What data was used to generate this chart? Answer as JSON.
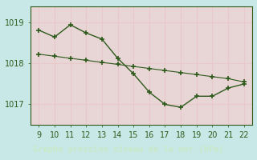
{
  "line1_x": [
    9,
    10,
    11,
    12,
    13,
    14,
    15,
    16,
    17,
    18,
    19,
    20,
    21,
    22
  ],
  "line1_y": [
    1018.82,
    1018.65,
    1018.95,
    1018.75,
    1018.6,
    1018.13,
    1017.75,
    1017.3,
    1017.0,
    1016.93,
    1017.2,
    1017.2,
    1017.4,
    1017.5
  ],
  "line2_x": [
    9,
    10,
    11,
    12,
    13,
    14,
    15,
    16,
    17,
    18,
    19,
    20,
    21,
    22
  ],
  "line2_y": [
    1018.23,
    1018.18,
    1018.13,
    1018.08,
    1018.03,
    1017.98,
    1017.93,
    1017.88,
    1017.83,
    1017.78,
    1017.73,
    1017.68,
    1017.63,
    1017.55
  ],
  "line_color": "#2d5a1b",
  "plot_bg_color": "#e8d5d5",
  "outer_bg_color": "#c8e8e8",
  "grid_color": "#e8c8c8",
  "label_bar_color": "#2d5a1b",
  "xlabel": "Graphe pression niveau de la mer (hPa)",
  "xlabel_color": "#c8e8c8",
  "xticks": [
    9,
    10,
    11,
    12,
    13,
    14,
    15,
    16,
    17,
    18,
    19,
    20,
    21,
    22
  ],
  "yticks": [
    1017,
    1018,
    1019
  ],
  "ylim": [
    1016.5,
    1019.4
  ],
  "xlim": [
    8.5,
    22.5
  ],
  "tick_color": "#2d5a1b",
  "tick_fontsize": 7,
  "marker1": "+",
  "marker2": "+",
  "markersize": 4,
  "figsize": [
    3.2,
    2.0
  ],
  "dpi": 100
}
